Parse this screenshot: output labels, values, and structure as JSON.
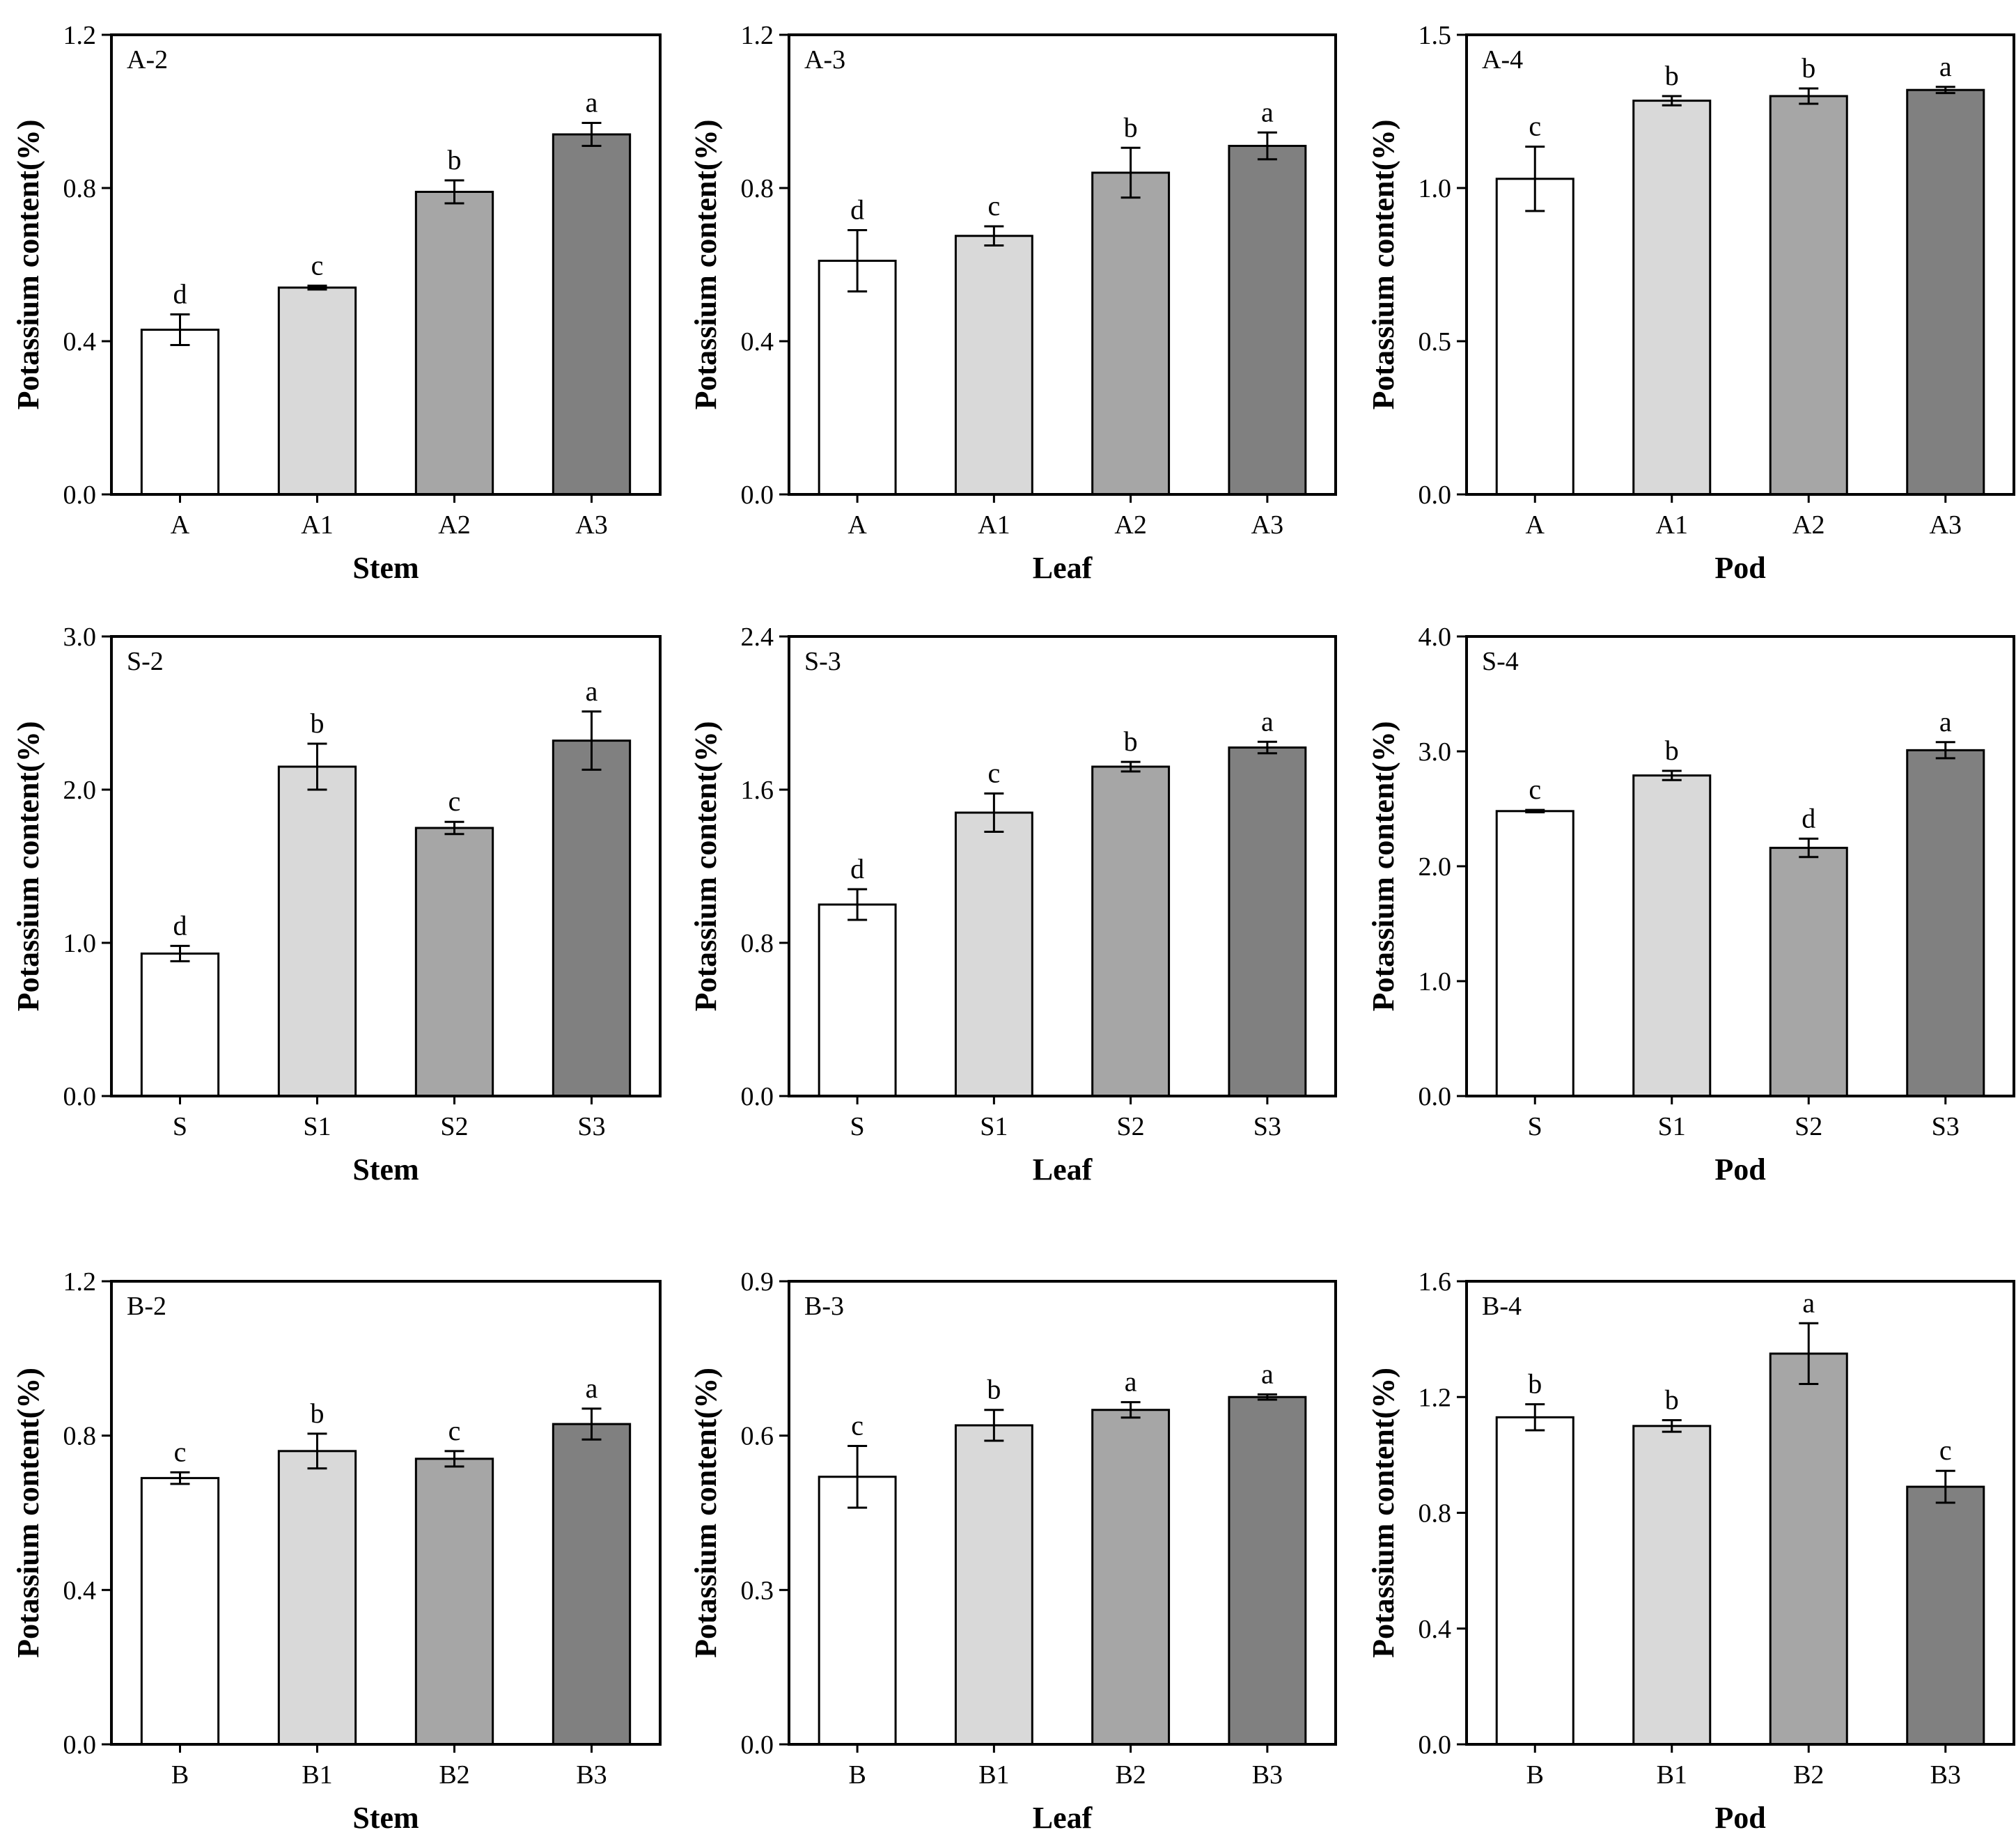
{
  "chart_data": [
    {
      "id": "A-2",
      "type": "bar",
      "title": "A-2",
      "xlabel": "Stem",
      "ylabel": "Potassium content(%)",
      "ylim": [
        0,
        1.2
      ],
      "yticks": [
        "0.0",
        "0.4",
        "0.8",
        "1.2"
      ],
      "categories": [
        "A",
        "A1",
        "A2",
        "A3"
      ],
      "values": [
        0.43,
        0.54,
        0.79,
        0.94
      ],
      "errors": [
        0.04,
        0.005,
        0.03,
        0.03
      ],
      "letters": [
        "d",
        "c",
        "b",
        "a"
      ]
    },
    {
      "id": "A-3",
      "type": "bar",
      "title": "A-3",
      "xlabel": "Leaf",
      "ylabel": "Potassium content(%)",
      "ylim": [
        0,
        1.2
      ],
      "yticks": [
        "0.0",
        "0.4",
        "0.8",
        "1.2"
      ],
      "categories": [
        "A",
        "A1",
        "A2",
        "A3"
      ],
      "values": [
        0.61,
        0.675,
        0.84,
        0.91
      ],
      "errors": [
        0.08,
        0.025,
        0.065,
        0.035
      ],
      "letters": [
        "d",
        "c",
        "b",
        "a"
      ]
    },
    {
      "id": "A-4",
      "type": "bar",
      "title": "A-4",
      "xlabel": "Pod",
      "ylabel": "Potassium content(%)",
      "ylim": [
        0,
        1.5
      ],
      "yticks": [
        "0.0",
        "0.5",
        "1.0",
        "1.5"
      ],
      "categories": [
        "A",
        "A1",
        "A2",
        "A3"
      ],
      "values": [
        1.03,
        1.285,
        1.3,
        1.32
      ],
      "errors": [
        0.105,
        0.015,
        0.025,
        0.01
      ],
      "letters": [
        "c",
        "b",
        "b",
        "a"
      ]
    },
    {
      "id": "S-2",
      "type": "bar",
      "title": "S-2",
      "xlabel": "Stem",
      "ylabel": "Potassium content(%)",
      "ylim": [
        0,
        3.0
      ],
      "yticks": [
        "0.0",
        "1.0",
        "2.0",
        "3.0"
      ],
      "categories": [
        "S",
        "S1",
        "S2",
        "S3"
      ],
      "values": [
        0.93,
        2.15,
        1.75,
        2.32
      ],
      "errors": [
        0.05,
        0.15,
        0.04,
        0.19
      ],
      "letters": [
        "d",
        "b",
        "c",
        "a"
      ]
    },
    {
      "id": "S-3",
      "type": "bar",
      "title": "S-3",
      "xlabel": "Leaf",
      "ylabel": "Potassium content(%)",
      "ylim": [
        0,
        2.4
      ],
      "yticks": [
        "0.0",
        "0.8",
        "1.6",
        "2.4"
      ],
      "categories": [
        "S",
        "S1",
        "S2",
        "S3"
      ],
      "values": [
        1.0,
        1.48,
        1.72,
        1.82
      ],
      "errors": [
        0.08,
        0.1,
        0.025,
        0.03
      ],
      "letters": [
        "d",
        "c",
        "b",
        "a"
      ]
    },
    {
      "id": "S-4",
      "type": "bar",
      "title": "S-4",
      "xlabel": "Pod",
      "ylabel": "Potassium content(%)",
      "ylim": [
        0,
        4.0
      ],
      "yticks": [
        "0.0",
        "1.0",
        "2.0",
        "3.0",
        "4.0"
      ],
      "categories": [
        "S",
        "S1",
        "S2",
        "S3"
      ],
      "values": [
        2.48,
        2.79,
        2.16,
        3.01
      ],
      "errors": [
        0.01,
        0.04,
        0.08,
        0.07
      ],
      "letters": [
        "c",
        "b",
        "d",
        "a"
      ]
    },
    {
      "id": "B-2",
      "type": "bar",
      "title": "B-2",
      "xlabel": "Stem",
      "ylabel": "Potassium content(%)",
      "ylim": [
        0,
        1.2
      ],
      "yticks": [
        "0.0",
        "0.4",
        "0.8",
        "1.2"
      ],
      "categories": [
        "B",
        "B1",
        "B2",
        "B3"
      ],
      "values": [
        0.69,
        0.76,
        0.74,
        0.83
      ],
      "errors": [
        0.015,
        0.045,
        0.02,
        0.04
      ],
      "letters": [
        "c",
        "b",
        "c",
        "a"
      ]
    },
    {
      "id": "B-3",
      "type": "bar",
      "title": "B-3",
      "xlabel": "Leaf",
      "ylabel": "Potassium content(%)",
      "ylim": [
        0,
        0.9
      ],
      "yticks": [
        "0.0",
        "0.3",
        "0.6",
        "0.9"
      ],
      "categories": [
        "B",
        "B1",
        "B2",
        "B3"
      ],
      "values": [
        0.52,
        0.62,
        0.65,
        0.675
      ],
      "errors": [
        0.06,
        0.03,
        0.015,
        0.005
      ],
      "letters": [
        "c",
        "b",
        "a",
        "a"
      ]
    },
    {
      "id": "B-4",
      "type": "bar",
      "title": "B-4",
      "xlabel": "Pod",
      "ylabel": "Potassium content(%)",
      "ylim": [
        0,
        1.6
      ],
      "yticks": [
        "0.0",
        "0.4",
        "0.8",
        "1.2",
        "1.6"
      ],
      "categories": [
        "B",
        "B1",
        "B2",
        "B3"
      ],
      "values": [
        1.13,
        1.1,
        1.35,
        0.89
      ],
      "errors": [
        0.045,
        0.02,
        0.105,
        0.055
      ],
      "letters": [
        "b",
        "b",
        "a",
        "c"
      ]
    }
  ],
  "colors": {
    "bar_fills": [
      "#ffffff",
      "#d9d9d9",
      "#a6a6a6",
      "#808080"
    ],
    "stroke": "#000000"
  }
}
